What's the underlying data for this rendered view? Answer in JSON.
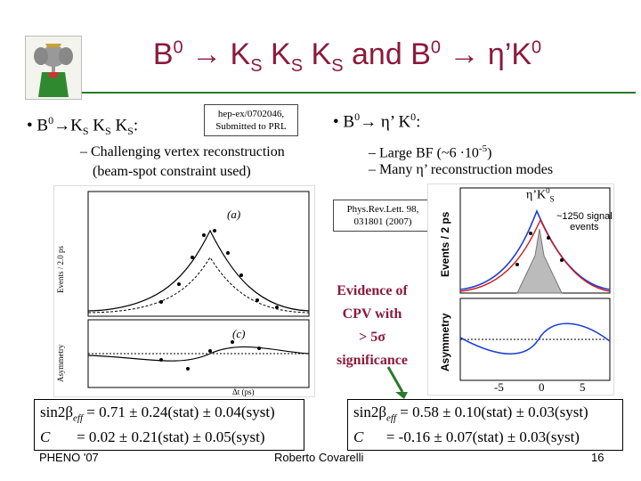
{
  "title": {
    "b0_part": "B",
    "b0_sup": "0",
    "arrow": "→",
    "ks": "K",
    "ks_sub": "S",
    "and": "and",
    "eta_k": "η’K",
    "k_sup": "0"
  },
  "left": {
    "bullet_head": "B",
    "bullet_sup": "0",
    "bullet_rest": "→K",
    "ks_sub": "S",
    "k": "K",
    "colon": ":",
    "sub_item_1": "– Challenging vertex reconstruction",
    "sub_item_2": "(beam-spot constraint used)",
    "ref_line_1": "hep-ex/0702046,",
    "ref_line_2": "Submitted to PRL",
    "plot_label": "(a)",
    "plot_label_c": "(c)",
    "y_axis_top": "Events / 2.0 ps",
    "y_axis_bottom": "Asymmetry",
    "x_axis": "Δt (ps)",
    "result_line_1": "sin2β",
    "result_eff": "eff",
    "result_line_1_rest": " = 0.71 ± 0.24(stat) ± 0.04(syst)",
    "result_line_2_c": "C",
    "result_line_2_rest": "= 0.02 ± 0.21(stat) ± 0.05(syst)"
  },
  "right": {
    "bullet_head": "B",
    "bullet_sup": "0",
    "bullet_rest": "→ η’ K",
    "bullet_sup2": "0",
    "colon": ":",
    "sub_item_1": "– Large BF (~6 ·10",
    "sub_item_1_sup": "-5",
    "sub_item_1_end": ")",
    "sub_item_2": "– Many η’ reconstruction modes",
    "ref_line_1": "Phys.Rev.Lett. 98,",
    "ref_line_2": "031801 (2007)",
    "plot_title": "η’K",
    "plot_title_sup": "0",
    "plot_title_sub": "S",
    "signal_line_1": "~1250 signal",
    "signal_line_2": "events",
    "y_axis_top": "Events / 2 ps",
    "y_axis_bottom": "Asymmetry",
    "x_ticks": [
      "-5",
      "0",
      "5"
    ],
    "result_line_1": "sin2β",
    "result_eff": "eff",
    "result_line_1_rest": " = 0.58 ± 0.10(stat) ± 0.03(syst)",
    "result_line_2_c": "C",
    "result_line_2_rest": "= -0.16 ± 0.07(stat) ± 0.03(syst)"
  },
  "evidence": {
    "line_1": "Evidence of",
    "line_2": "CPV with",
    "line_3": "> 5σ",
    "line_4": "significance"
  },
  "footer": {
    "left": "PHENO '07",
    "center": "Roberto Covarelli",
    "page": "16"
  },
  "colors": {
    "title": "#8b1a3c",
    "rule": "#2a7a2a",
    "arrow": "#2a7a2a"
  }
}
